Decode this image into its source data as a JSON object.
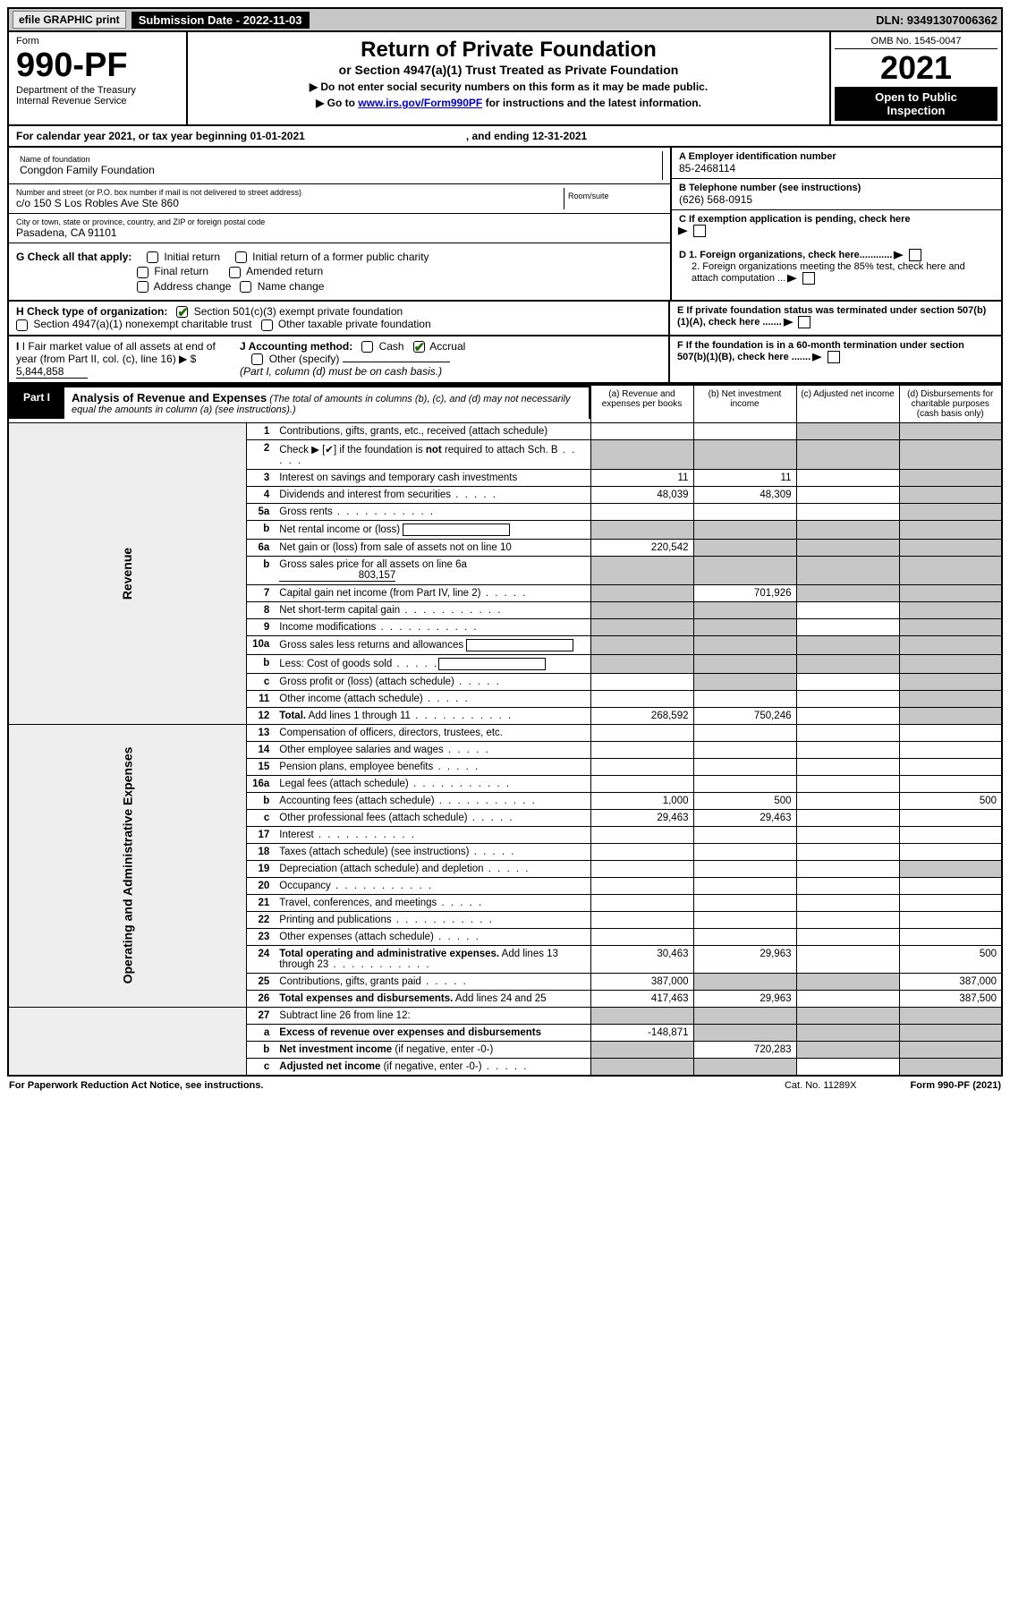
{
  "topbar": {
    "efile": "efile GRAPHIC print",
    "submission": "Submission Date - 2022-11-03",
    "dln": "DLN: 93491307006362"
  },
  "header": {
    "form_label": "Form",
    "form_no": "990-PF",
    "dept1": "Department of the Treasury",
    "dept2": "Internal Revenue Service",
    "title": "Return of Private Foundation",
    "subtitle": "or Section 4947(a)(1) Trust Treated as Private Foundation",
    "instr1": "▶ Do not enter social security numbers on this form as it may be made public.",
    "instr2_a": "▶ Go to ",
    "instr2_link": "www.irs.gov/Form990PF",
    "instr2_b": " for instructions and the latest information.",
    "omb": "OMB No. 1545-0047",
    "year": "2021",
    "black1": "Open to Public",
    "black2": "Inspection"
  },
  "cal": {
    "text_a": "For calendar year 2021, or tax year beginning 01-01-2021",
    "text_b": ", and ending 12-31-2021"
  },
  "info": {
    "name_lbl": "Name of foundation",
    "name": "Congdon Family Foundation",
    "addr_lbl": "Number and street (or P.O. box number if mail is not delivered to street address)",
    "addr": "c/o 150 S Los Robles Ave Ste 860",
    "room_lbl": "Room/suite",
    "city_lbl": "City or town, state or province, country, and ZIP or foreign postal code",
    "city": "Pasadena, CA  91101",
    "ein_lbl": "A Employer identification number",
    "ein": "85-2468114",
    "tel_lbl": "B Telephone number (see instructions)",
    "tel": "(626) 568-0915",
    "c_lbl": "C If exemption application is pending, check here",
    "d1": "D 1. Foreign organizations, check here............",
    "d2": "2. Foreign organizations meeting the 85% test, check here and attach computation ...",
    "e_lbl": "E  If private foundation status was terminated under section 507(b)(1)(A), check here .......",
    "f_lbl": "F  If the foundation is in a 60-month termination under section 507(b)(1)(B), check here .......",
    "g_lbl": "G Check all that apply:",
    "g1": "Initial return",
    "g2": "Initial return of a former public charity",
    "g3": "Final return",
    "g4": "Amended return",
    "g5": "Address change",
    "g6": "Name change",
    "h_lbl": "H Check type of organization:",
    "h1": "Section 501(c)(3) exempt private foundation",
    "h2": "Section 4947(a)(1) nonexempt charitable trust",
    "h3": "Other taxable private foundation",
    "i_lbl": "I Fair market value of all assets at end of year (from Part II, col. (c), line 16) ▶ $",
    "i_val": "5,844,858",
    "j_lbl": "J Accounting method:",
    "j1": "Cash",
    "j2": "Accrual",
    "j3": "Other (specify)",
    "j_note": "(Part I, column (d) must be on cash basis.)"
  },
  "part1": {
    "tag": "Part I",
    "title": "Analysis of Revenue and Expenses",
    "note": " (The total of amounts in columns (b), (c), and (d) may not necessarily equal the amounts in column (a) (see instructions).)",
    "col_a": "(a)   Revenue and expenses per books",
    "col_b": "(b)   Net investment income",
    "col_c": "(c)   Adjusted net income",
    "col_d": "(d)   Disbursements for charitable purposes (cash basis only)",
    "side_rev": "Revenue",
    "side_exp": "Operating and Administrative Expenses"
  },
  "rows": [
    {
      "n": "1",
      "d": "Contributions, gifts, grants, etc., received (attach schedule)",
      "a": "",
      "b": "",
      "c": "grey",
      "dcol": "grey"
    },
    {
      "n": "2",
      "d": "Check ▶ [✔] if the foundation is <b>not</b> required to attach Sch. B",
      "dots": "s",
      "a": "grey",
      "b": "grey",
      "c": "grey",
      "dcol": "grey"
    },
    {
      "n": "3",
      "d": "Interest on savings and temporary cash investments",
      "a": "11",
      "b": "11",
      "c": "",
      "dcol": "grey"
    },
    {
      "n": "4",
      "d": "Dividends and interest from securities",
      "dots": "s",
      "a": "48,039",
      "b": "48,309",
      "c": "",
      "dcol": "grey"
    },
    {
      "n": "5a",
      "d": "Gross rents",
      "dots": "y",
      "a": "",
      "b": "",
      "c": "",
      "dcol": "grey"
    },
    {
      "n": "b",
      "d": "Net rental income or (loss) <span class='small-input'></span>",
      "a": "grey",
      "b": "grey",
      "c": "grey",
      "dcol": "grey"
    },
    {
      "n": "6a",
      "d": "Net gain or (loss) from sale of assets not on line 10",
      "a": "220,542",
      "b": "grey",
      "c": "grey",
      "dcol": "grey"
    },
    {
      "n": "b",
      "d": "Gross sales price for all assets on line 6a <span class='ul' style='min-width:130px;text-align:right'>803,157</span>",
      "a": "grey",
      "b": "grey",
      "c": "grey",
      "dcol": "grey"
    },
    {
      "n": "7",
      "d": "Capital gain net income (from Part IV, line 2)",
      "dots": "s",
      "a": "grey",
      "b": "701,926",
      "c": "grey",
      "dcol": "grey"
    },
    {
      "n": "8",
      "d": "Net short-term capital gain",
      "dots": "y",
      "a": "grey",
      "b": "grey",
      "c": "",
      "dcol": "grey"
    },
    {
      "n": "9",
      "d": "Income modifications",
      "dots": "y",
      "a": "grey",
      "b": "grey",
      "c": "",
      "dcol": "grey"
    },
    {
      "n": "10a",
      "d": "Gross sales less returns and allowances  <span class='small-input'></span>",
      "a": "grey",
      "b": "grey",
      "c": "grey",
      "dcol": "grey"
    },
    {
      "n": "b",
      "d": "Less: Cost of goods sold",
      "dots": "s",
      "post": "<span class='small-input'></span>",
      "a": "grey",
      "b": "grey",
      "c": "grey",
      "dcol": "grey"
    },
    {
      "n": "c",
      "d": "Gross profit or (loss) (attach schedule)",
      "dots": "s",
      "a": "",
      "b": "grey",
      "c": "",
      "dcol": "grey"
    },
    {
      "n": "11",
      "d": "Other income (attach schedule)",
      "dots": "s",
      "a": "",
      "b": "",
      "c": "",
      "dcol": "grey"
    },
    {
      "n": "12",
      "d": "<b>Total.</b> Add lines 1 through 11",
      "dots": "y",
      "a": "268,592",
      "b": "750,246",
      "c": "",
      "dcol": "grey"
    }
  ],
  "exp_rows": [
    {
      "n": "13",
      "d": "Compensation of officers, directors, trustees, etc.",
      "a": "",
      "b": "",
      "c": "",
      "dcol": ""
    },
    {
      "n": "14",
      "d": "Other employee salaries and wages",
      "dots": "s",
      "a": "",
      "b": "",
      "c": "",
      "dcol": ""
    },
    {
      "n": "15",
      "d": "Pension plans, employee benefits",
      "dots": "s",
      "a": "",
      "b": "",
      "c": "",
      "dcol": ""
    },
    {
      "n": "16a",
      "d": "Legal fees (attach schedule)",
      "dots": "y",
      "a": "",
      "b": "",
      "c": "",
      "dcol": ""
    },
    {
      "n": "b",
      "d": "Accounting fees (attach schedule)",
      "dots": "y",
      "a": "1,000",
      "b": "500",
      "c": "",
      "dcol": "500"
    },
    {
      "n": "c",
      "d": "Other professional fees (attach schedule)",
      "dots": "s",
      "a": "29,463",
      "b": "29,463",
      "c": "",
      "dcol": ""
    },
    {
      "n": "17",
      "d": "Interest",
      "dots": "y",
      "a": "",
      "b": "",
      "c": "",
      "dcol": ""
    },
    {
      "n": "18",
      "d": "Taxes (attach schedule) (see instructions)",
      "dots": "s",
      "a": "",
      "b": "",
      "c": "",
      "dcol": ""
    },
    {
      "n": "19",
      "d": "Depreciation (attach schedule) and depletion",
      "dots": "s",
      "a": "",
      "b": "",
      "c": "",
      "dcol": "grey"
    },
    {
      "n": "20",
      "d": "Occupancy",
      "dots": "y",
      "a": "",
      "b": "",
      "c": "",
      "dcol": ""
    },
    {
      "n": "21",
      "d": "Travel, conferences, and meetings",
      "dots": "s",
      "a": "",
      "b": "",
      "c": "",
      "dcol": ""
    },
    {
      "n": "22",
      "d": "Printing and publications",
      "dots": "y",
      "a": "",
      "b": "",
      "c": "",
      "dcol": ""
    },
    {
      "n": "23",
      "d": "Other expenses (attach schedule)",
      "dots": "s",
      "a": "",
      "b": "",
      "c": "",
      "dcol": ""
    },
    {
      "n": "24",
      "d": "<b>Total operating and administrative expenses.</b> Add lines 13 through 23",
      "dots": "y",
      "a": "30,463",
      "b": "29,963",
      "c": "",
      "dcol": "500"
    },
    {
      "n": "25",
      "d": "Contributions, gifts, grants paid",
      "dots": "s",
      "a": "387,000",
      "b": "grey",
      "c": "grey",
      "dcol": "387,000"
    },
    {
      "n": "26",
      "d": "<b>Total expenses and disbursements.</b> Add lines 24 and 25",
      "a": "417,463",
      "b": "29,963",
      "c": "",
      "dcol": "387,500"
    }
  ],
  "bot_rows": [
    {
      "n": "27",
      "d": "Subtract line 26 from line 12:",
      "a": "grey",
      "b": "grey",
      "c": "grey",
      "dcol": "grey"
    },
    {
      "n": "a",
      "d": "<b>Excess of revenue over expenses and disbursements</b>",
      "a": "-148,871",
      "b": "grey",
      "c": "grey",
      "dcol": "grey"
    },
    {
      "n": "b",
      "d": "<b>Net investment income</b> (if negative, enter -0-)",
      "a": "grey",
      "b": "720,283",
      "c": "grey",
      "dcol": "grey"
    },
    {
      "n": "c",
      "d": "<b>Adjusted net income</b> (if negative, enter -0-)",
      "dots": "s",
      "a": "grey",
      "b": "grey",
      "c": "",
      "dcol": "grey"
    }
  ],
  "footer": {
    "left": "For Paperwork Reduction Act Notice, see instructions.",
    "mid": "Cat. No. 11289X",
    "right": "Form 990-PF (2021)"
  },
  "colors": {
    "grey": "#c7c7c7",
    "green": "#1a6b00"
  }
}
